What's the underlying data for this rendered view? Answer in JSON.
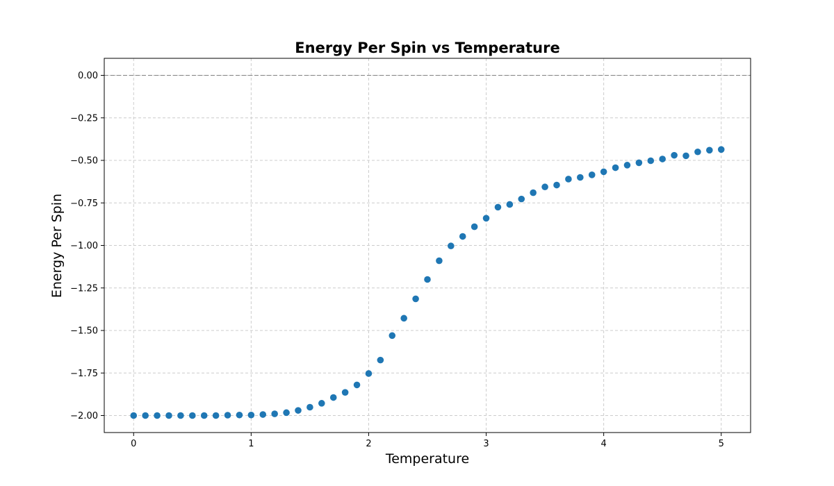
{
  "chart_data": {
    "type": "scatter",
    "title": "Energy Per Spin vs Temperature",
    "xlabel": "Temperature",
    "ylabel": "Energy Per Spin",
    "xlim": [
      -0.25,
      5.25
    ],
    "ylim": [
      -2.1,
      0.1
    ],
    "xticks": [
      0,
      1,
      2,
      3,
      4,
      5
    ],
    "xtick_labels": [
      "0",
      "1",
      "2",
      "3",
      "4",
      "5"
    ],
    "yticks": [
      0.0,
      -0.25,
      -0.5,
      -0.75,
      -1.0,
      -1.25,
      -1.5,
      -1.75,
      -2.0
    ],
    "ytick_labels": [
      "0.00",
      "−0.25",
      "−0.50",
      "−0.75",
      "−1.00",
      "−1.25",
      "−1.50",
      "−1.75",
      "−2.00"
    ],
    "grid": true,
    "reference_line": {
      "y": 0,
      "style": "dashed",
      "color": "#808080"
    },
    "marker_color": "#1f77b4",
    "series": [
      {
        "x": [
          0.0,
          0.1,
          0.2,
          0.3,
          0.4,
          0.5,
          0.6,
          0.7,
          0.8,
          0.9,
          1.0,
          1.1,
          1.2,
          1.3,
          1.4,
          1.5,
          1.6,
          1.7,
          1.8,
          1.9,
          2.0,
          2.1,
          2.2,
          2.3,
          2.4,
          2.5,
          2.6,
          2.7,
          2.8,
          2.9,
          3.0,
          3.1,
          3.2,
          3.3,
          3.4,
          3.5,
          3.6,
          3.7,
          3.8,
          3.9,
          4.0,
          4.1,
          4.2,
          4.3,
          4.4,
          4.5,
          4.6,
          4.7,
          4.8,
          4.9,
          5.0
        ],
        "y": [
          -2.0,
          -2.0,
          -2.0,
          -2.0,
          -2.0,
          -2.0,
          -2.0,
          -2.0,
          -1.998,
          -1.997,
          -1.997,
          -1.994,
          -1.99,
          -1.983,
          -1.97,
          -1.951,
          -1.928,
          -1.894,
          -1.864,
          -1.82,
          -1.753,
          -1.674,
          -1.53,
          -1.428,
          -1.314,
          -1.2,
          -1.09,
          -1.003,
          -0.947,
          -0.89,
          -0.84,
          -0.775,
          -0.759,
          -0.727,
          -0.69,
          -0.656,
          -0.645,
          -0.61,
          -0.6,
          -0.585,
          -0.567,
          -0.543,
          -0.528,
          -0.514,
          -0.502,
          -0.492,
          -0.47,
          -0.473,
          -0.45,
          -0.44,
          -0.436
        ]
      }
    ]
  }
}
